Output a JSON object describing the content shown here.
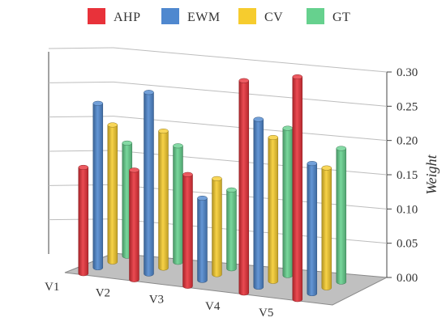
{
  "chart_data": {
    "type": "bar",
    "title": "",
    "xlabel": "",
    "ylabel": "Weight",
    "ylim": [
      0,
      0.3
    ],
    "yticks": [
      "0.00",
      "0.05",
      "0.10",
      "0.15",
      "0.20",
      "0.25",
      "0.30"
    ],
    "grid": true,
    "legend_position": "top",
    "categories": [
      "V1",
      "V2",
      "V3",
      "V4",
      "V5"
    ],
    "series": [
      {
        "name": "AHP",
        "color": "#e8323a",
        "values": [
          0.155,
          0.16,
          0.163,
          0.31,
          0.325
        ]
      },
      {
        "name": "EWM",
        "color": "#4f88cf",
        "values": [
          0.24,
          0.265,
          0.12,
          0.245,
          0.19
        ]
      },
      {
        "name": "CV",
        "color": "#f6cc2e",
        "values": [
          0.2,
          0.2,
          0.14,
          0.21,
          0.175
        ]
      },
      {
        "name": "GT",
        "color": "#66d18e",
        "values": [
          0.165,
          0.17,
          0.115,
          0.215,
          0.195
        ]
      }
    ]
  }
}
